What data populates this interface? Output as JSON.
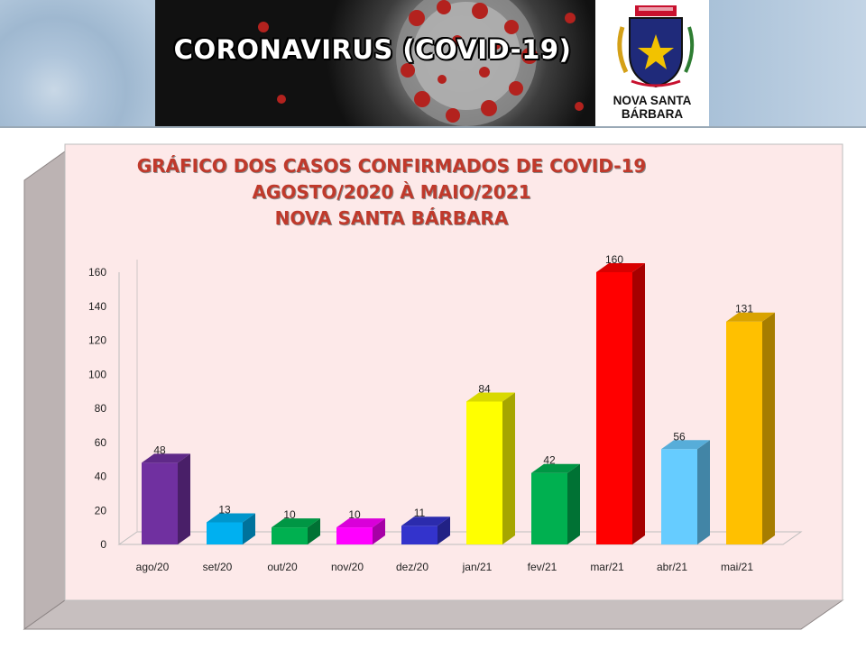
{
  "banner": {
    "title": "CORONAVIRUS (COVID-19)"
  },
  "logo": {
    "line1": "NOVA SANTA",
    "line2": "BÁRBARA"
  },
  "chart_data": {
    "type": "bar",
    "title_lines": [
      "GRÁFICO DOS CASOS CONFIRMADOS DE COVID-19",
      "AGOSTO/2020 À MAIO/2021",
      "NOVA SANTA BÁRBARA"
    ],
    "categories": [
      "ago/20",
      "set/20",
      "out/20",
      "nov/20",
      "dez/20",
      "jan/21",
      "fev/21",
      "mar/21",
      "abr/21",
      "mai/21"
    ],
    "values": [
      48,
      13,
      10,
      10,
      11,
      84,
      42,
      160,
      56,
      131
    ],
    "data_labels": [
      "48",
      "13",
      "10",
      "10",
      "11",
      "84",
      "42",
      "160",
      "56",
      "131"
    ],
    "bar_colors": [
      "#7030a0",
      "#00b0f0",
      "#00b050",
      "#ff00ff",
      "#3333cc",
      "#ffff00",
      "#00b050",
      "#ff0000",
      "#66ccff",
      "#ffc000"
    ],
    "ylim": [
      0,
      160
    ],
    "y_ticks": [
      "0",
      "20",
      "40",
      "60",
      "80",
      "100",
      "120",
      "140",
      "160"
    ],
    "xlabel": "",
    "ylabel": "",
    "grid": false,
    "legend": "none",
    "background_color": "#fde9e9"
  }
}
